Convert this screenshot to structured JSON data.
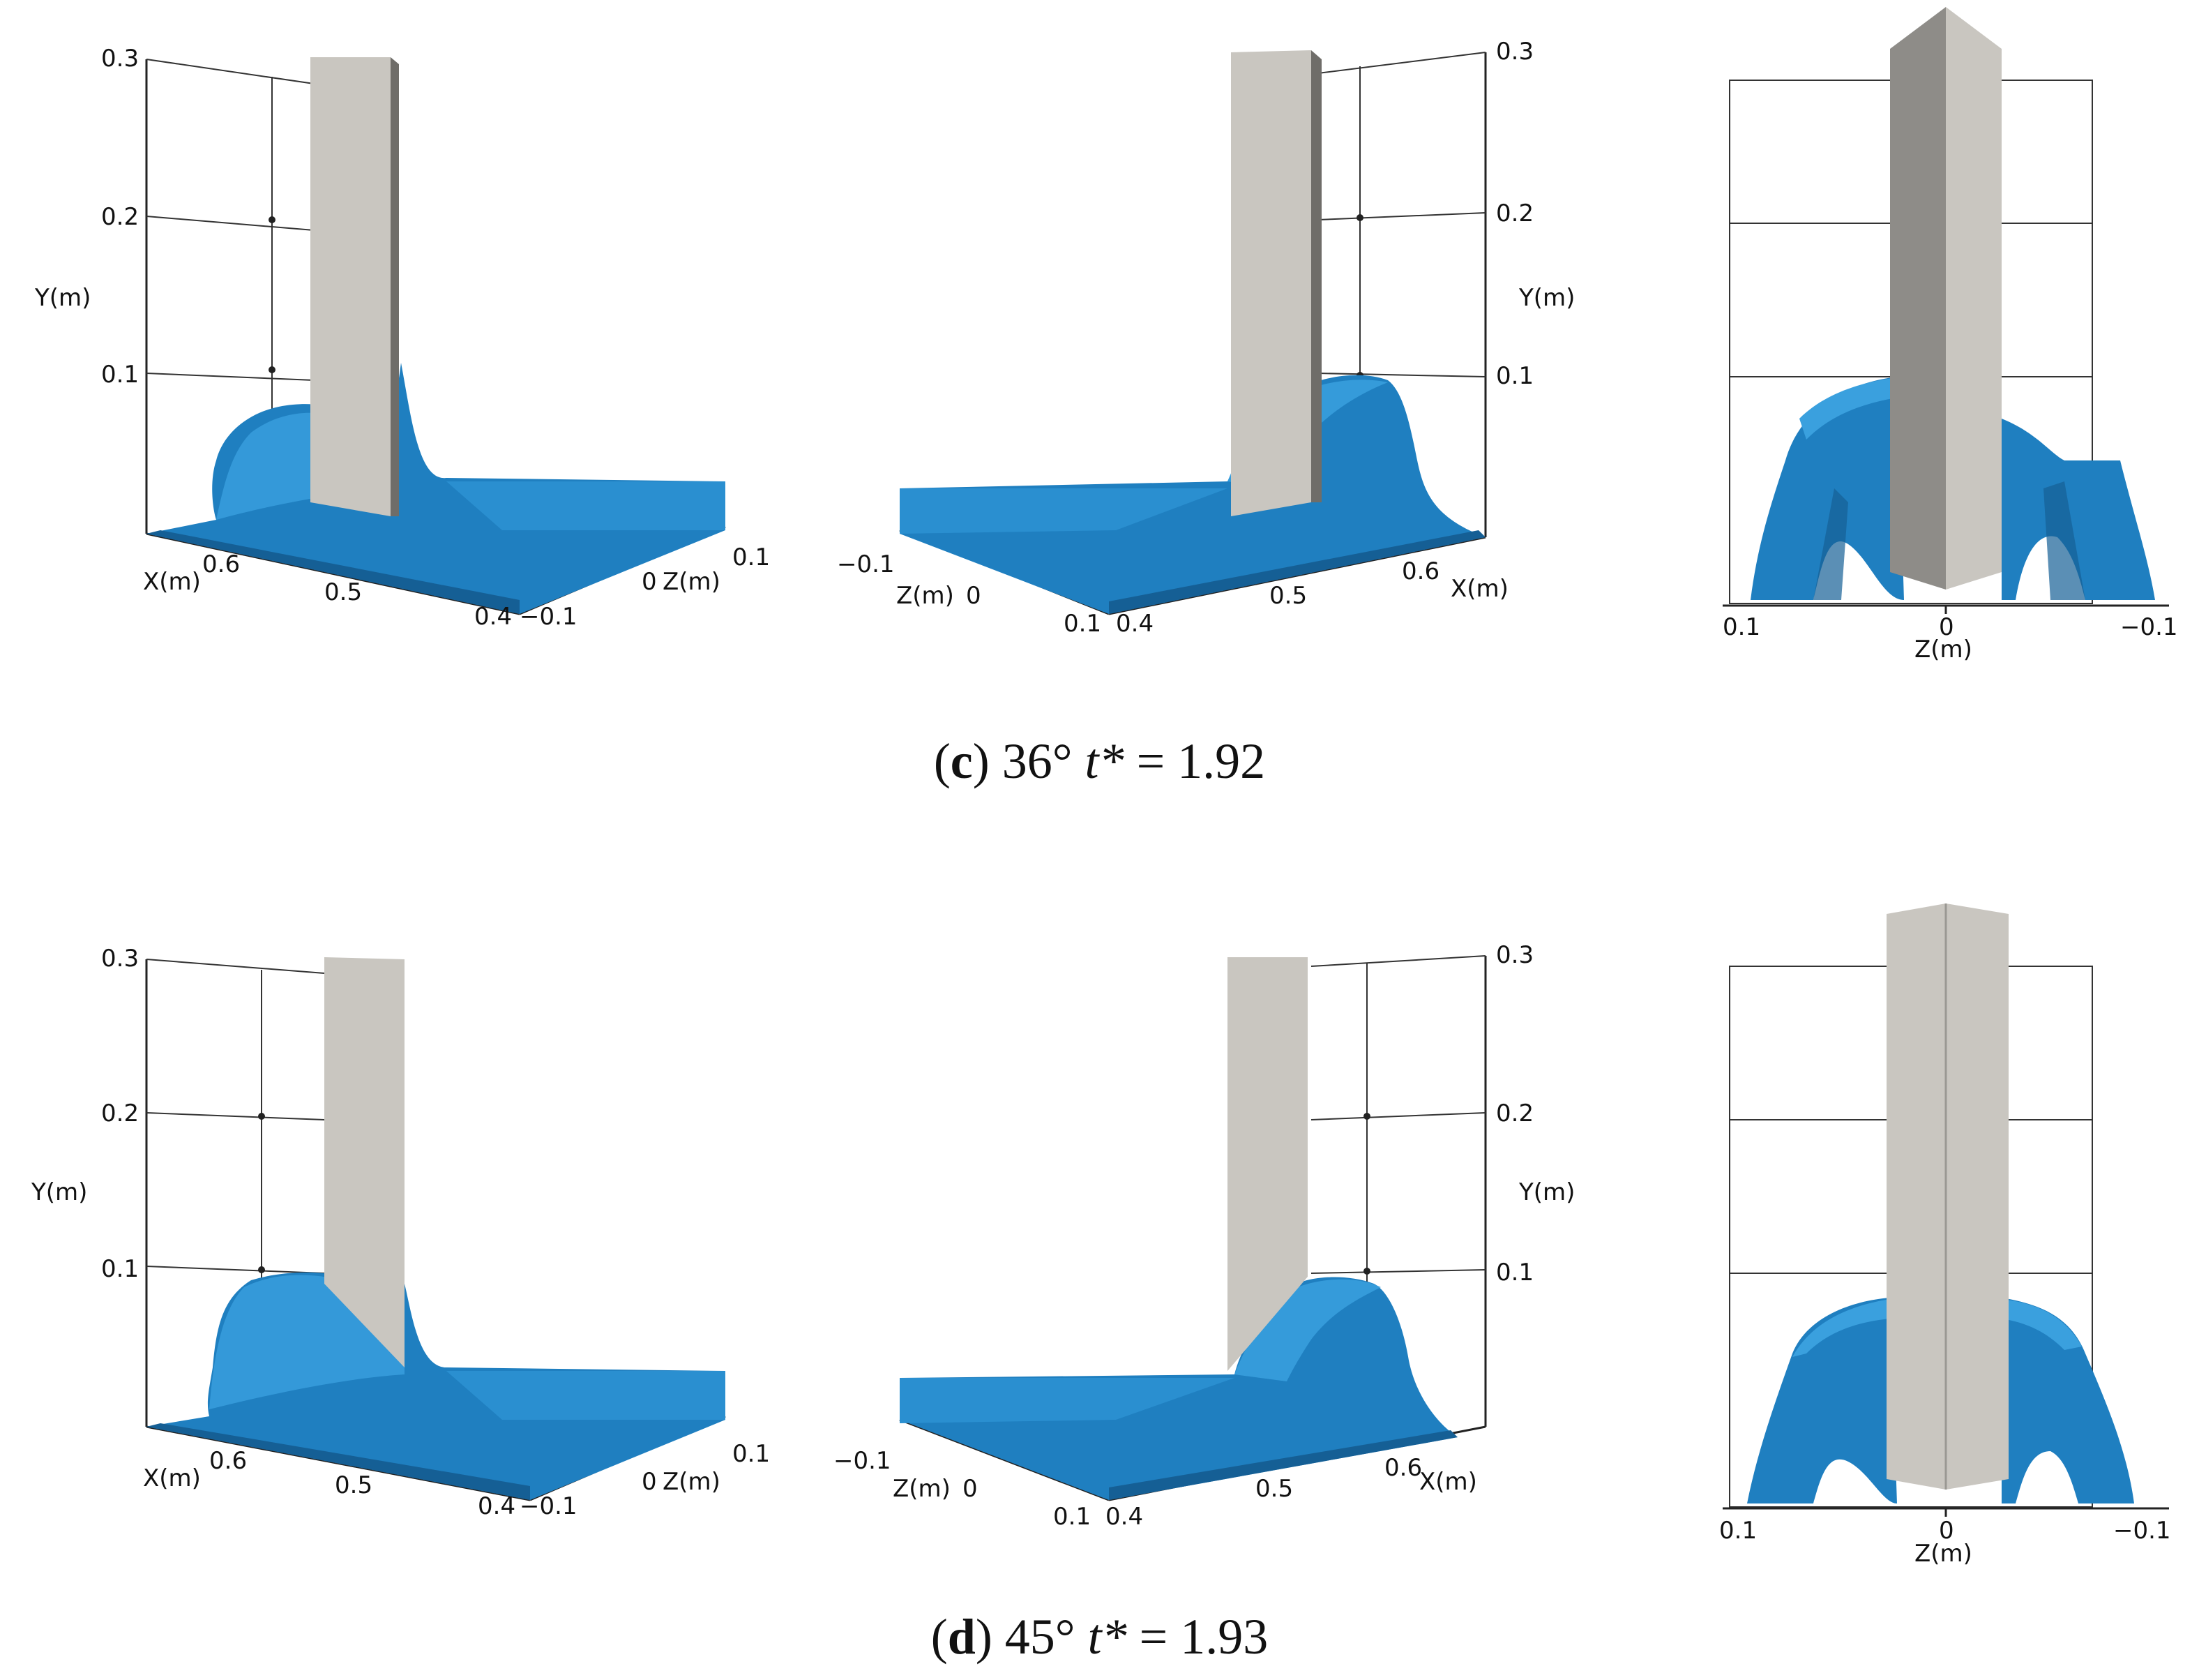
{
  "figure": {
    "rows": [
      {
        "caption": {
          "letter": "c",
          "angle": "36°",
          "t_symbol": "t*",
          "t_value": "1.92"
        },
        "view_left": {
          "y_axis": {
            "label": "Y(m)",
            "ticks": [
              "0.3",
              "0.2",
              "0.1"
            ]
          },
          "x_axis": {
            "label": "X(m)",
            "ticks": [
              "0.6",
              "0.5",
              "0.4"
            ]
          },
          "z_axis": {
            "label": "Z(m)",
            "ticks": [
              "0.1",
              "0",
              "−0.1"
            ]
          }
        },
        "view_middle": {
          "y_axis": {
            "label": "Y(m)",
            "ticks": [
              "0.3",
              "0.2",
              "0.1"
            ]
          },
          "z_axis": {
            "label": "Z(m)",
            "ticks": [
              "−0.1",
              "0",
              "0.1"
            ]
          },
          "x_axis": {
            "label": "X(m)",
            "ticks": [
              "0.4",
              "0.5",
              "0.6"
            ]
          }
        },
        "view_right": {
          "z_axis": {
            "label": "Z(m)",
            "ticks": [
              "0.1",
              "0",
              "−0.1"
            ]
          }
        }
      },
      {
        "caption": {
          "letter": "d",
          "angle": "45°",
          "t_symbol": "t*",
          "t_value": "1.93"
        },
        "view_left": {
          "y_axis": {
            "label": "Y(m)",
            "ticks": [
              "0.3",
              "0.2",
              "0.1"
            ]
          },
          "x_axis": {
            "label": "X(m)",
            "ticks": [
              "0.6",
              "0.5",
              "0.4"
            ]
          },
          "z_axis": {
            "label": "Z(m)",
            "ticks": [
              "0.1",
              "0",
              "−0.1"
            ]
          }
        },
        "view_middle": {
          "y_axis": {
            "label": "Y(m)",
            "ticks": [
              "0.3",
              "0.2",
              "0.1"
            ]
          },
          "z_axis": {
            "label": "Z(m)",
            "ticks": [
              "−0.1",
              "0",
              "0.1"
            ]
          },
          "x_axis": {
            "label": "X(m)",
            "ticks": [
              "0.4",
              "0.5",
              "0.6"
            ]
          }
        },
        "view_right": {
          "z_axis": {
            "label": "Z(m)",
            "ticks": [
              "0.1",
              "0",
              "−0.1"
            ]
          }
        }
      }
    ],
    "colors": {
      "water": "#1f7fc0",
      "water_light": "#3aa0de",
      "water_dark": "#155f95",
      "pillar_front": "#c9c6c0",
      "pillar_side": "#8e8c88",
      "axis": "#222222"
    }
  }
}
